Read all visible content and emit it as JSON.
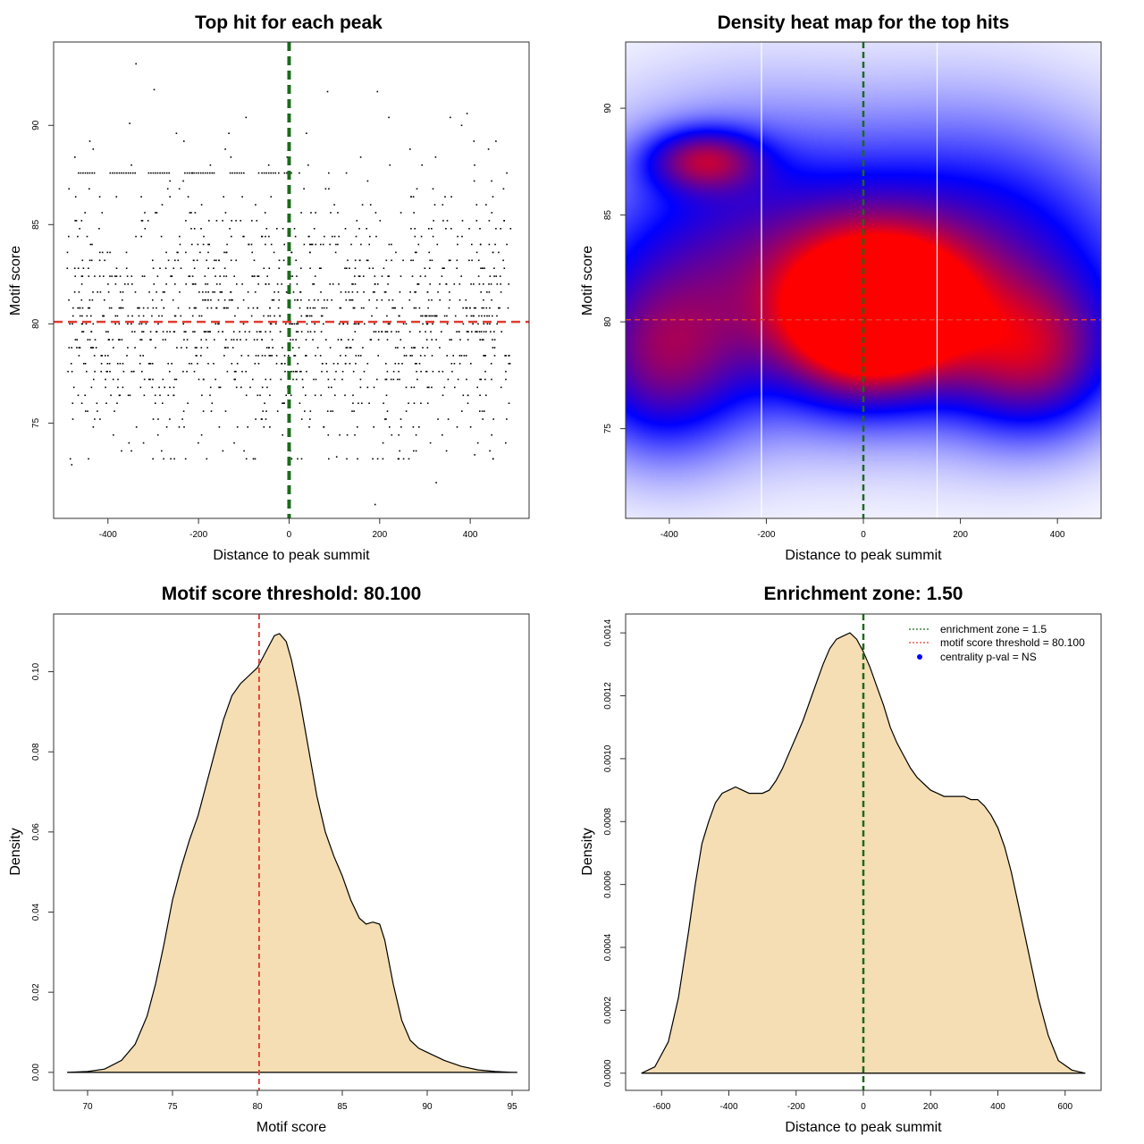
{
  "colors": {
    "threshold": "#E03C31",
    "zone": "#1B6B1B",
    "fill": "#F5DEB3",
    "points": "#000000",
    "heat_low": "#ffffff",
    "heat_mid": "#0000ff",
    "heat_high": "#ff0000",
    "centrality_dot": "#0000ff"
  },
  "chart_data": [
    {
      "id": "scatter",
      "type": "scatter",
      "title": "Top hit for each peak",
      "xlabel": "Distance to peak summit",
      "ylabel": "Motif score",
      "xlim": [
        -520,
        530
      ],
      "ylim": [
        70.2,
        94.2
      ],
      "xticks": [
        -400,
        -200,
        0,
        200,
        400
      ],
      "yticks": [
        75,
        80,
        85,
        90
      ],
      "vline": 0,
      "hline": 80.1,
      "n_points": 1400,
      "point_distribution": {
        "x_range": [
          -490,
          490
        ],
        "y_center": 80.2,
        "y_sd": 3.4,
        "band_y": 87.6,
        "band_segments": [
          [
            -465,
            -430
          ],
          [
            -395,
            -340
          ],
          [
            -310,
            -265
          ],
          [
            -230,
            -170
          ],
          [
            -130,
            -100
          ],
          [
            -60,
            -30
          ],
          [
            -10,
            5
          ]
        ]
      },
      "notable_points": [
        {
          "x": -338,
          "y": 93.1
        },
        {
          "x": -298,
          "y": 91.8
        },
        {
          "x": 85,
          "y": 91.7
        },
        {
          "x": 195,
          "y": 91.7
        },
        {
          "x": 393,
          "y": 90.6
        },
        {
          "x": -352,
          "y": 90.1
        },
        {
          "x": 190,
          "y": 70.9
        },
        {
          "x": 325,
          "y": 72.0
        },
        {
          "x": -480,
          "y": 72.9
        },
        {
          "x": 105,
          "y": 73.3
        },
        {
          "x": 410,
          "y": 73.4
        }
      ]
    },
    {
      "id": "heatmap",
      "type": "heatmap",
      "title": "Density heat map for the top hits",
      "xlabel": "Distance to peak summit",
      "ylabel": "Motif score",
      "xlim": [
        -490,
        490
      ],
      "ylim": [
        70.8,
        93.1
      ],
      "xticks": [
        -400,
        -200,
        0,
        200,
        400
      ],
      "yticks": [
        75,
        80,
        85,
        90
      ],
      "vline": 0,
      "hline": 80.1,
      "white_lines_x": [
        -210,
        152
      ],
      "density_blobs": [
        {
          "x": 0,
          "y": 80.2,
          "sx": 120,
          "sy": 2.5,
          "w": 1.0
        },
        {
          "x": 90,
          "y": 81.0,
          "sx": 110,
          "sy": 2.2,
          "w": 0.35
        },
        {
          "x": -330,
          "y": 87.6,
          "sx": 80,
          "sy": 1.0,
          "w": 0.55
        },
        {
          "x": -420,
          "y": 78.0,
          "sx": 120,
          "sy": 3.0,
          "w": 0.5
        },
        {
          "x": 350,
          "y": 78.3,
          "sx": 120,
          "sy": 2.5,
          "w": 0.55
        },
        {
          "x": 0,
          "y": 82.5,
          "sx": 450,
          "sy": 4.5,
          "w": 0.4
        },
        {
          "x": -250,
          "y": 83.0,
          "sx": 200,
          "sy": 5.0,
          "w": 0.25
        },
        {
          "x": 250,
          "y": 83.0,
          "sx": 200,
          "sy": 5.0,
          "w": 0.25
        }
      ]
    },
    {
      "id": "score-density",
      "type": "area",
      "title": "Motif score threshold: 80.100",
      "xlabel": "Motif score",
      "ylabel": "Density",
      "xlim": [
        68.0,
        96.0
      ],
      "ylim": [
        -0.0045,
        0.1144
      ],
      "xticks": [
        70,
        75,
        80,
        85,
        90,
        95
      ],
      "yticks": [
        0.0,
        0.02,
        0.04,
        0.06,
        0.08,
        0.1
      ],
      "ytick_labels": [
        "0.00",
        "0.02",
        "0.04",
        "0.06",
        "0.08",
        "0.10"
      ],
      "vline": 80.1,
      "x": [
        68.8,
        70.0,
        71.0,
        72.0,
        72.8,
        73.5,
        74.0,
        74.5,
        75.0,
        75.5,
        76.0,
        76.5,
        77.0,
        77.5,
        78.0,
        78.5,
        79.0,
        79.5,
        80.0,
        80.5,
        81.0,
        81.3,
        81.7,
        82.0,
        82.5,
        83.0,
        83.5,
        84.0,
        84.5,
        85.0,
        85.5,
        86.0,
        86.4,
        86.8,
        87.2,
        87.5,
        88.0,
        88.5,
        89.0,
        89.5,
        90.0,
        91.0,
        92.0,
        93.0,
        94.0,
        95.0,
        95.3
      ],
      "y": [
        0.0,
        0.0002,
        0.0008,
        0.003,
        0.007,
        0.014,
        0.022,
        0.032,
        0.043,
        0.051,
        0.058,
        0.064,
        0.072,
        0.08,
        0.088,
        0.094,
        0.097,
        0.099,
        0.101,
        0.105,
        0.109,
        0.1095,
        0.1075,
        0.103,
        0.093,
        0.081,
        0.069,
        0.06,
        0.054,
        0.049,
        0.043,
        0.0385,
        0.037,
        0.0375,
        0.037,
        0.033,
        0.022,
        0.013,
        0.008,
        0.006,
        0.005,
        0.003,
        0.0015,
        0.0006,
        0.0002,
        0.0,
        0.0
      ]
    },
    {
      "id": "distance-density",
      "type": "area",
      "title": "Enrichment zone: 1.50",
      "xlabel": "Distance to peak summit",
      "ylabel": "Density",
      "xlim": [
        -707,
        707
      ],
      "ylim": [
        -5.46e-05,
        0.00146
      ],
      "xticks": [
        -600,
        -400,
        -200,
        0,
        200,
        400,
        600
      ],
      "yticks": [
        0.0,
        0.0002,
        0.0004,
        0.0006,
        0.0008,
        0.001,
        0.0012,
        0.0014
      ],
      "ytick_labels": [
        "0.0000",
        "0.0002",
        "0.0004",
        "0.0006",
        "0.0008",
        "0.0010",
        "0.0012",
        "0.0014"
      ],
      "vline": 0,
      "x": [
        -660,
        -620,
        -580,
        -550,
        -520,
        -500,
        -480,
        -460,
        -440,
        -420,
        -400,
        -380,
        -360,
        -340,
        -320,
        -300,
        -280,
        -260,
        -240,
        -220,
        -200,
        -180,
        -160,
        -140,
        -120,
        -100,
        -80,
        -60,
        -40,
        -20,
        0,
        20,
        40,
        60,
        80,
        100,
        120,
        140,
        160,
        180,
        200,
        220,
        240,
        260,
        280,
        300,
        320,
        340,
        360,
        380,
        400,
        420,
        440,
        460,
        480,
        500,
        520,
        550,
        580,
        620,
        660
      ],
      "y": [
        0.0,
        2e-05,
        0.0001,
        0.00024,
        0.00045,
        0.0006,
        0.00073,
        0.0008,
        0.00086,
        0.00089,
        0.0009,
        0.00091,
        0.0009,
        0.00089,
        0.00089,
        0.00089,
        0.0009,
        0.00093,
        0.00097,
        0.00102,
        0.00107,
        0.00112,
        0.00118,
        0.00124,
        0.0013,
        0.00135,
        0.00138,
        0.00139,
        0.0014,
        0.00138,
        0.00134,
        0.00129,
        0.00123,
        0.00117,
        0.0011,
        0.00105,
        0.00101,
        0.00097,
        0.00094,
        0.00092,
        0.0009,
        0.00089,
        0.00088,
        0.00088,
        0.00088,
        0.00088,
        0.00087,
        0.00087,
        0.00085,
        0.00082,
        0.00078,
        0.00072,
        0.00064,
        0.00054,
        0.00044,
        0.00034,
        0.00024,
        0.00012,
        4e-05,
        1e-05,
        0.0
      ],
      "legend": [
        {
          "label": "enrichment zone = 1.5",
          "kind": "dotted",
          "color": "#1B6B1B"
        },
        {
          "label": "motif score threshold = 80.100",
          "kind": "dotted",
          "color": "#E03C31"
        },
        {
          "label": "centrality p-val = NS",
          "kind": "dot",
          "color": "#0000ff"
        }
      ]
    }
  ]
}
